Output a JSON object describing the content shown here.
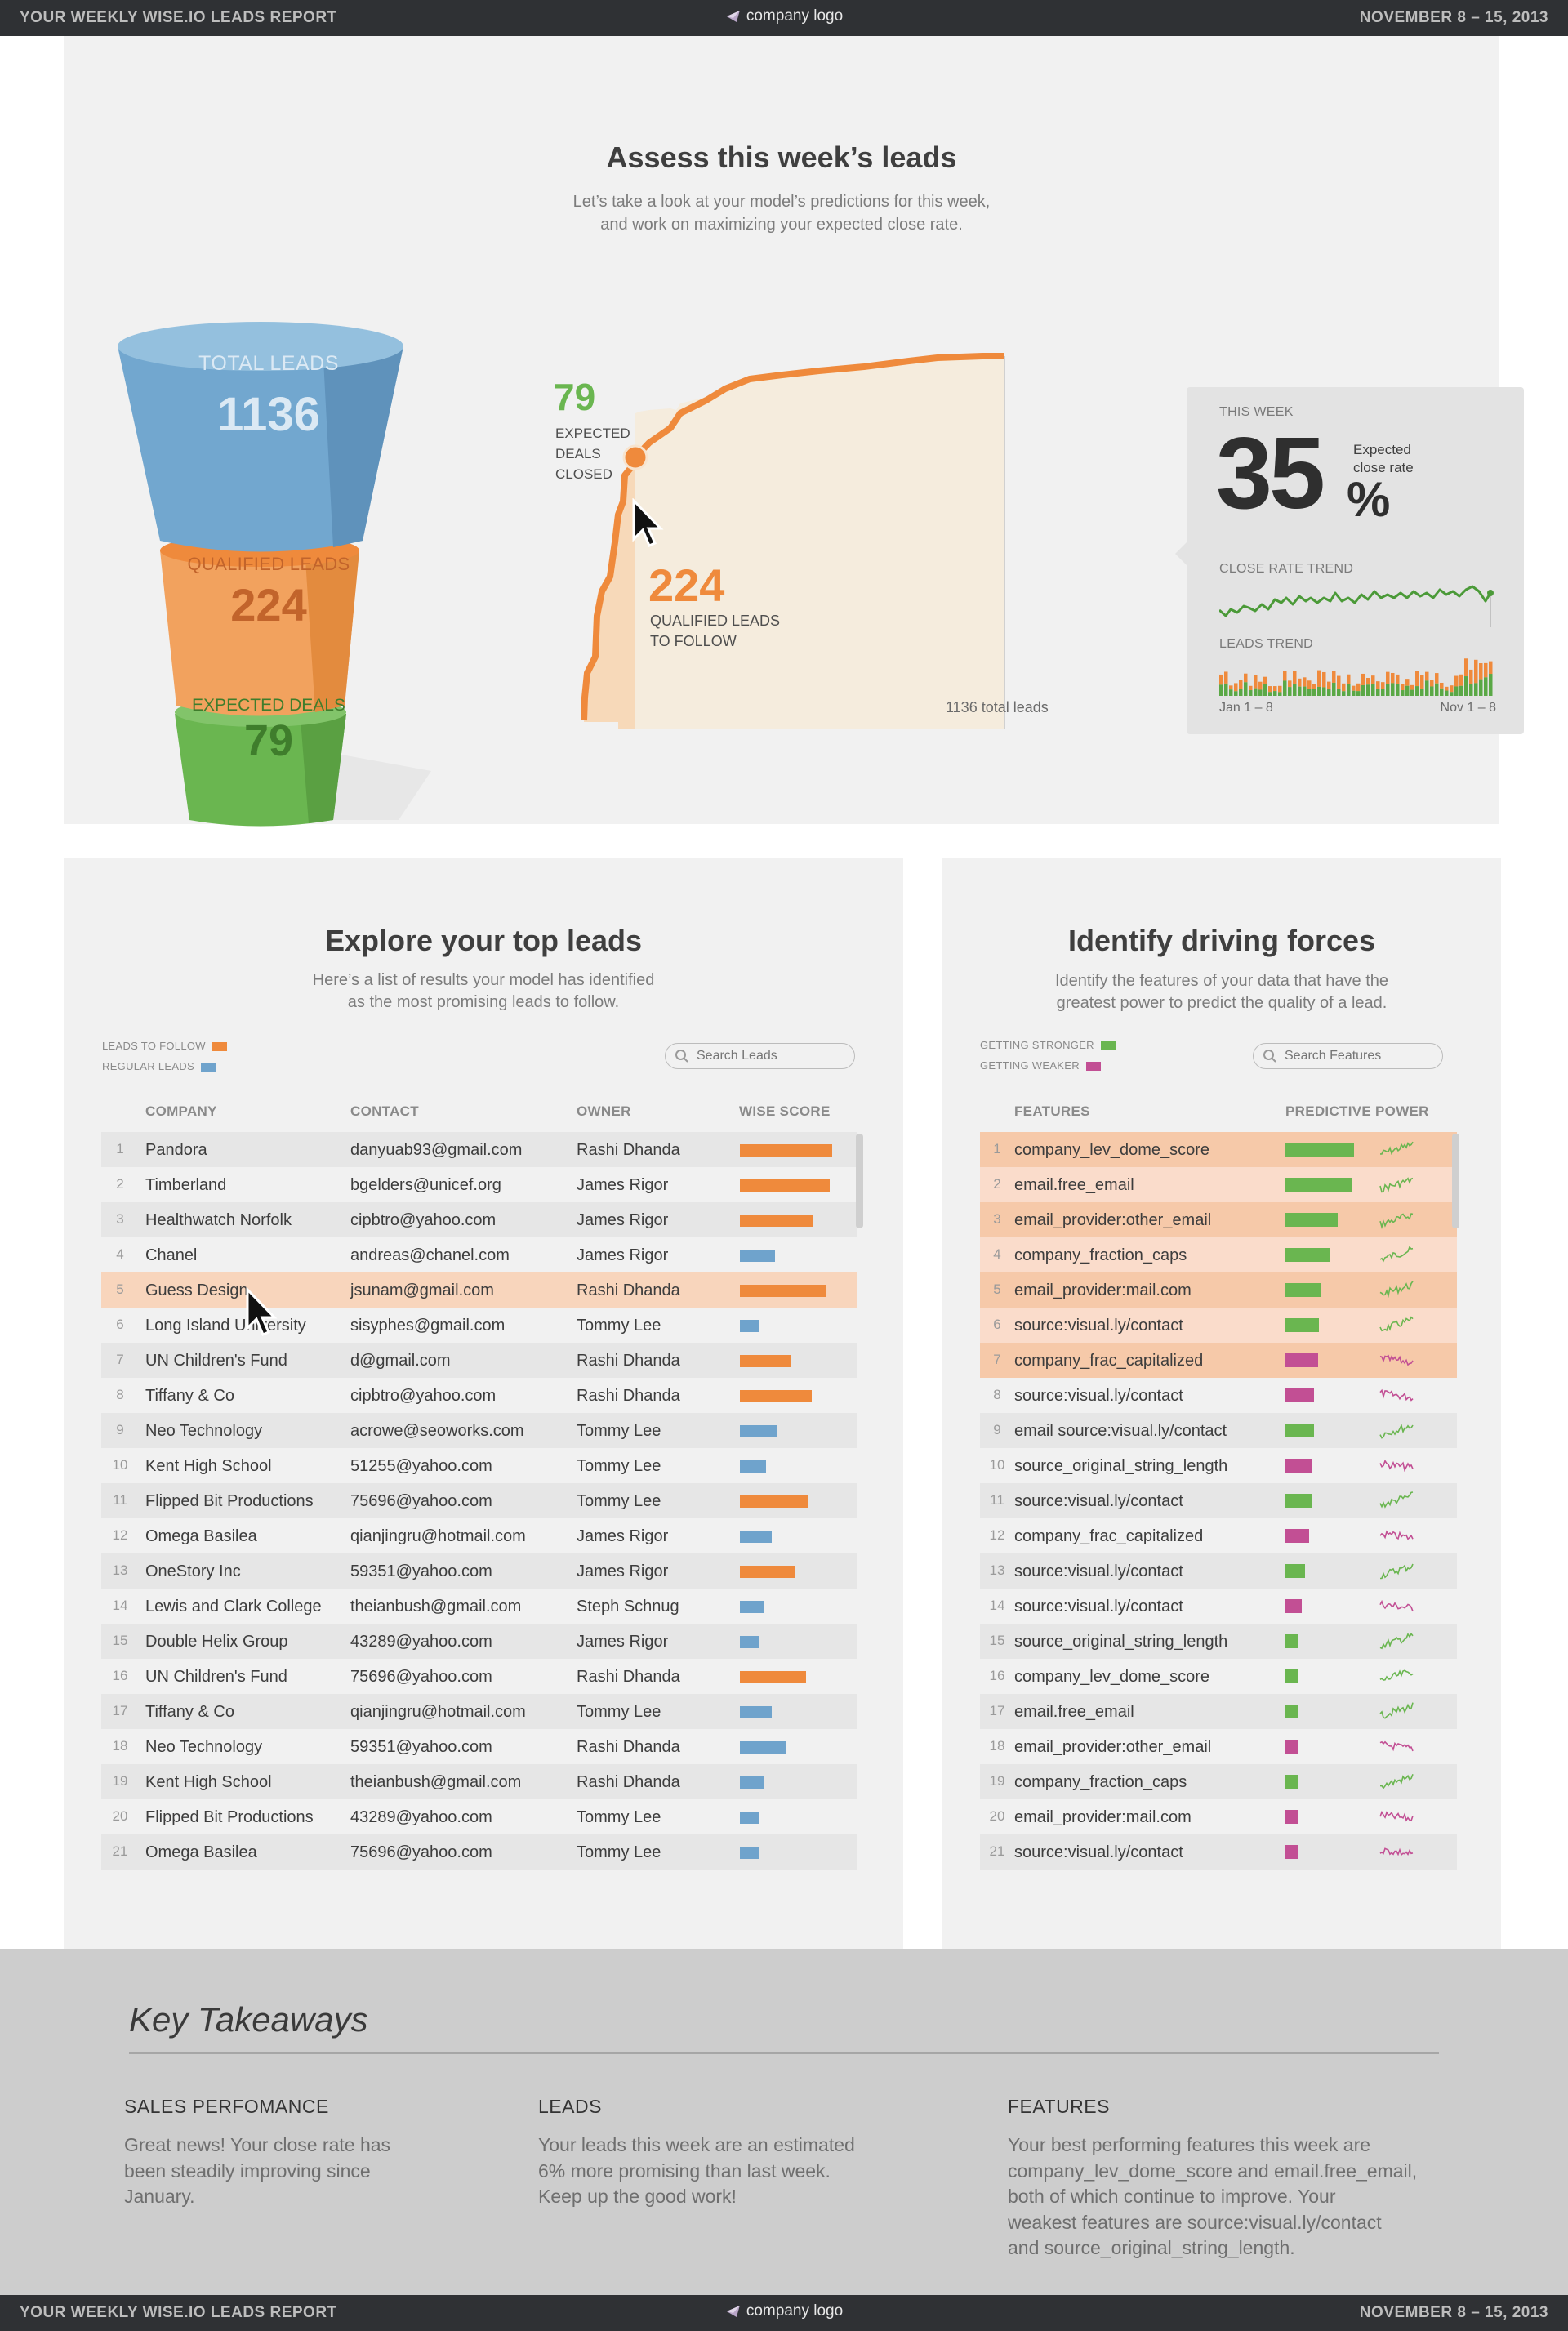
{
  "header": {
    "title": "YOUR WEEKLY WISE.IO LEADS REPORT",
    "logo": "company logo",
    "date": "NOVEMBER 8 – 15, 2013"
  },
  "footer": {
    "title": "YOUR WEEKLY WISE.IO LEADS REPORT",
    "logo": "company logo",
    "date": "NOVEMBER 8 – 15, 2013"
  },
  "assess": {
    "title": "Assess this week’s leads",
    "subtitle_1": "Let’s take a look at your model’s predictions for this week,",
    "subtitle_2": "and work on maximizing your expected close rate.",
    "funnel": {
      "total_label": "TOTAL LEADS",
      "total_value": "1136",
      "qualified_label": "QUALIFIED LEADS",
      "qualified_value": "224",
      "expected_label": "EXPECTED DEALS",
      "expected_value": "79"
    },
    "curve": {
      "deals_value": "79",
      "deals_l1": "EXPECTED",
      "deals_l2": "DEALS",
      "deals_l3": "CLOSED",
      "qual_value": "224",
      "qual_l1": "QUALIFIED LEADS",
      "qual_l2": "TO FOLLOW",
      "total_note": "1136 total leads"
    },
    "card": {
      "week_label": "THIS WEEK",
      "rate_value": "35",
      "rate_unit": "%",
      "rate_desc_1": "Expected",
      "rate_desc_2": "close rate",
      "trend_label": "CLOSE RATE TREND",
      "leads_trend_label": "LEADS TREND",
      "axis_start": "Jan 1 – 8",
      "axis_end": "Nov 1 – 8"
    },
    "colors": {
      "blue": "#6fa3cc",
      "orange": "#ef8a3c",
      "green": "#6ab650",
      "pink": "#c24f94"
    }
  },
  "leads": {
    "title": "Explore your top leads",
    "subtitle_1": "Here’s a list of results your model has identified",
    "subtitle_2": "as the most promising leads to follow.",
    "legend_follow": "LEADS TO FOLLOW",
    "legend_regular": "REGULAR LEADS",
    "search_placeholder": "Search Leads",
    "columns": {
      "company": "COMPANY",
      "contact": "CONTACT",
      "owner": "OWNER",
      "score": "WISE SCORE"
    },
    "rows": [
      {
        "num": "1",
        "company": "Pandora",
        "contact": "danyuab93@gmail.com",
        "owner": "Rashi Dhanda",
        "score": 0.93,
        "type": "follow"
      },
      {
        "num": "2",
        "company": "Timberland",
        "contact": "bgelders@unicef.org",
        "owner": "James Rigor",
        "score": 0.9,
        "type": "follow"
      },
      {
        "num": "3",
        "company": "Healthwatch Norfolk",
        "contact": "cipbtro@yahoo.com",
        "owner": "James Rigor",
        "score": 0.74,
        "type": "follow"
      },
      {
        "num": "4",
        "company": "Chanel",
        "contact": "andreas@chanel.com",
        "owner": "James Rigor",
        "score": 0.35,
        "type": "regular"
      },
      {
        "num": "5",
        "company": "Guess Design",
        "contact": "jsunam@gmail.com",
        "owner": "Rashi Dhanda",
        "score": 0.87,
        "type": "follow"
      },
      {
        "num": "6",
        "company": "Long Island University",
        "contact": "sisyphes@gmail.com",
        "owner": "Tommy Lee",
        "score": 0.2,
        "type": "regular"
      },
      {
        "num": "7",
        "company": "UN Children's Fund",
        "contact": "d@gmail.com",
        "owner": "Rashi Dhanda",
        "score": 0.52,
        "type": "follow"
      },
      {
        "num": "8",
        "company": "Tiffany & Co",
        "contact": "cipbtro@yahoo.com",
        "owner": "Rashi Dhanda",
        "score": 0.72,
        "type": "follow"
      },
      {
        "num": "9",
        "company": "Neo Technology",
        "contact": "acrowe@seoworks.com",
        "owner": "Tommy Lee",
        "score": 0.38,
        "type": "regular"
      },
      {
        "num": "10",
        "company": "Kent High School",
        "contact": "51255@yahoo.com",
        "owner": "Tommy Lee",
        "score": 0.26,
        "type": "regular"
      },
      {
        "num": "11",
        "company": "Flipped Bit Productions",
        "contact": "75696@yahoo.com",
        "owner": "Tommy Lee",
        "score": 0.69,
        "type": "follow"
      },
      {
        "num": "12",
        "company": "Omega Basilea",
        "contact": "qianjingru@hotmail.com",
        "owner": "James Rigor",
        "score": 0.32,
        "type": "regular"
      },
      {
        "num": "13",
        "company": "OneStory Inc",
        "contact": "59351@yahoo.com",
        "owner": "James Rigor",
        "score": 0.56,
        "type": "follow"
      },
      {
        "num": "14",
        "company": "Lewis and Clark College",
        "contact": "theianbush@gmail.com",
        "owner": "Steph Schnug",
        "score": 0.24,
        "type": "regular"
      },
      {
        "num": "15",
        "company": "Double Helix Group",
        "contact": "43289@yahoo.com",
        "owner": "James Rigor",
        "score": 0.19,
        "type": "regular"
      },
      {
        "num": "16",
        "company": "UN Children's Fund",
        "contact": "75696@yahoo.com",
        "owner": "Rashi Dhanda",
        "score": 0.66,
        "type": "follow"
      },
      {
        "num": "17",
        "company": "Tiffany & Co",
        "contact": "qianjingru@hotmail.com",
        "owner": "Tommy Lee",
        "score": 0.32,
        "type": "regular"
      },
      {
        "num": "18",
        "company": "Neo Technology",
        "contact": "59351@yahoo.com",
        "owner": "Rashi Dhanda",
        "score": 0.46,
        "type": "regular"
      },
      {
        "num": "19",
        "company": "Kent High School",
        "contact": "theianbush@gmail.com",
        "owner": "Rashi Dhanda",
        "score": 0.24,
        "type": "regular"
      },
      {
        "num": "20",
        "company": "Flipped Bit Productions",
        "contact": "43289@yahoo.com",
        "owner": "Tommy Lee",
        "score": 0.19,
        "type": "regular"
      },
      {
        "num": "21",
        "company": "Omega Basilea",
        "contact": "75696@yahoo.com",
        "owner": "Tommy Lee",
        "score": 0.19,
        "type": "regular"
      }
    ]
  },
  "features": {
    "title": "Identify driving forces",
    "subtitle_1": "Identify the features of your data that have the",
    "subtitle_2": "greatest power to predict the quality of a lead.",
    "legend_stronger": "GETTING STRONGER",
    "legend_weaker": "GETTING WEAKER",
    "search_placeholder": "Search Features",
    "columns": {
      "feature": "FEATURES",
      "power": "PREDICTIVE POWER"
    },
    "rows": [
      {
        "num": "1",
        "name": "company_lev_dome_score",
        "power": 0.95,
        "trend": "stronger"
      },
      {
        "num": "2",
        "name": "email.free_email",
        "power": 0.92,
        "trend": "stronger"
      },
      {
        "num": "3",
        "name": "email_provider:other_email",
        "power": 0.73,
        "trend": "stronger"
      },
      {
        "num": "4",
        "name": "company_fraction_caps",
        "power": 0.61,
        "trend": "stronger"
      },
      {
        "num": "5",
        "name": "email_provider:mail.com",
        "power": 0.5,
        "trend": "stronger"
      },
      {
        "num": "6",
        "name": "source:visual.ly/contact",
        "power": 0.47,
        "trend": "stronger"
      },
      {
        "num": "7",
        "name": "company_frac_capitalized",
        "power": 0.45,
        "trend": "weaker"
      },
      {
        "num": "8",
        "name": "source:visual.ly/contact",
        "power": 0.4,
        "trend": "weaker"
      },
      {
        "num": "9",
        "name": "email source:visual.ly/contact",
        "power": 0.4,
        "trend": "stronger"
      },
      {
        "num": "10",
        "name": "source_original_string_length",
        "power": 0.38,
        "trend": "weaker"
      },
      {
        "num": "11",
        "name": "source:visual.ly/contact",
        "power": 0.36,
        "trend": "stronger"
      },
      {
        "num": "12",
        "name": "company_frac_capitalized",
        "power": 0.33,
        "trend": "weaker"
      },
      {
        "num": "13",
        "name": "source:visual.ly/contact",
        "power": 0.27,
        "trend": "stronger"
      },
      {
        "num": "14",
        "name": "source:visual.ly/contact",
        "power": 0.23,
        "trend": "weaker"
      },
      {
        "num": "15",
        "name": "source_original_string_length",
        "power": 0.18,
        "trend": "stronger"
      },
      {
        "num": "16",
        "name": "company_lev_dome_score",
        "power": 0.18,
        "trend": "stronger"
      },
      {
        "num": "17",
        "name": "email.free_email",
        "power": 0.18,
        "trend": "stronger"
      },
      {
        "num": "18",
        "name": "email_provider:other_email",
        "power": 0.18,
        "trend": "weaker"
      },
      {
        "num": "19",
        "name": "company_fraction_caps",
        "power": 0.18,
        "trend": "stronger"
      },
      {
        "num": "20",
        "name": "email_provider:mail.com",
        "power": 0.18,
        "trend": "weaker"
      },
      {
        "num": "21",
        "name": "source:visual.ly/contact",
        "power": 0.18,
        "trend": "weaker"
      }
    ]
  },
  "takeaways": {
    "title": "Key Takeaways",
    "sales_title": "SALES PERFOMANCE",
    "sales_l1": "Great news! Your close rate has",
    "sales_l2": "been steadily improving since",
    "sales_l3": "January.",
    "leads_title": "LEADS",
    "leads_l1": "Your leads this week are an estimated",
    "leads_l2": "6% more promising than last week.",
    "leads_l3": "Keep up the good work!",
    "features_title": "FEATURES",
    "features_l1": "Your best performing features this week are",
    "features_l2": "company_lev_dome_score and email.free_email,",
    "features_l3": "both of which continue to improve. Your",
    "features_l4": "weakest features are source:visual.ly/contact",
    "features_l5": "and source_original_string_length."
  }
}
